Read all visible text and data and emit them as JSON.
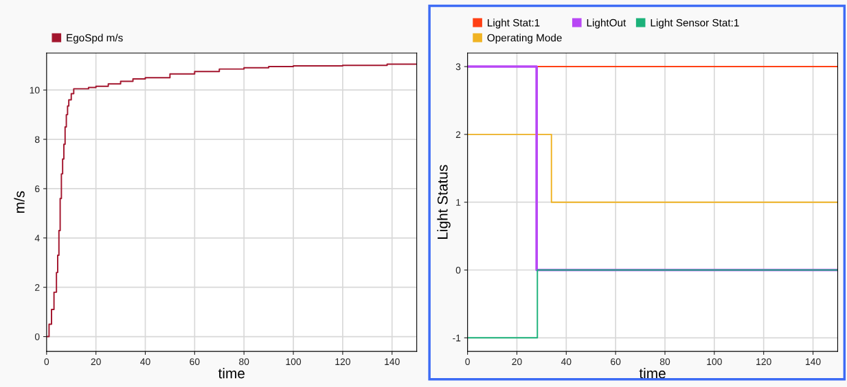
{
  "chart_data": [
    {
      "type": "step",
      "xlabel": "time",
      "ylabel": "m/s",
      "xlim": [
        0,
        150
      ],
      "ylim": [
        -0.6,
        11.5
      ],
      "xticks": [
        0,
        20,
        40,
        60,
        80,
        100,
        120,
        140
      ],
      "yticks": [
        0,
        2,
        4,
        6,
        8,
        10
      ],
      "grid": true,
      "legend": "top left",
      "series": [
        {
          "name": "EgoSpd m/s",
          "color": "#a3162e",
          "x": [
            0,
            1,
            2,
            3,
            4,
            4.5,
            5,
            5.5,
            6,
            6.5,
            7,
            7.5,
            8,
            8.5,
            9,
            10,
            11,
            17,
            20,
            25,
            30,
            35,
            40,
            50,
            60,
            70,
            80,
            90,
            100,
            120,
            138,
            150
          ],
          "values": [
            0,
            0.5,
            1.1,
            1.8,
            2.6,
            3.3,
            4.3,
            5.6,
            6.6,
            7.2,
            7.8,
            8.5,
            9.0,
            9.35,
            9.6,
            9.85,
            10.05,
            10.1,
            10.15,
            10.25,
            10.35,
            10.45,
            10.5,
            10.65,
            10.75,
            10.85,
            10.9,
            10.95,
            10.98,
            11.0,
            11.05,
            11.05
          ]
        }
      ]
    },
    {
      "type": "step",
      "xlabel": "time",
      "ylabel": "Light Status",
      "xlim": [
        0,
        150
      ],
      "ylim": [
        -1.2,
        3.2
      ],
      "xticks": [
        0,
        20,
        40,
        60,
        80,
        100,
        120,
        140
      ],
      "yticks": [
        -1,
        0,
        1,
        2,
        3
      ],
      "grid": true,
      "legend": "top left",
      "series": [
        {
          "name": "Light Stat:1",
          "color": "#ff4015",
          "x": [
            0,
            150
          ],
          "values": [
            3,
            3
          ]
        },
        {
          "name": "Operating Mode",
          "color": "#f0b323",
          "x": [
            0,
            34,
            150
          ],
          "values": [
            2,
            1,
            1
          ]
        },
        {
          "name": "LightOut",
          "color": "#b847f5",
          "x": [
            0,
            28,
            150
          ],
          "values": [
            3,
            0,
            0
          ]
        },
        {
          "name": "Light Sensor Stat:1",
          "color": "#1cb27a",
          "x": [
            0,
            28.3,
            150
          ],
          "values": [
            -1,
            0,
            0
          ]
        }
      ]
    }
  ]
}
